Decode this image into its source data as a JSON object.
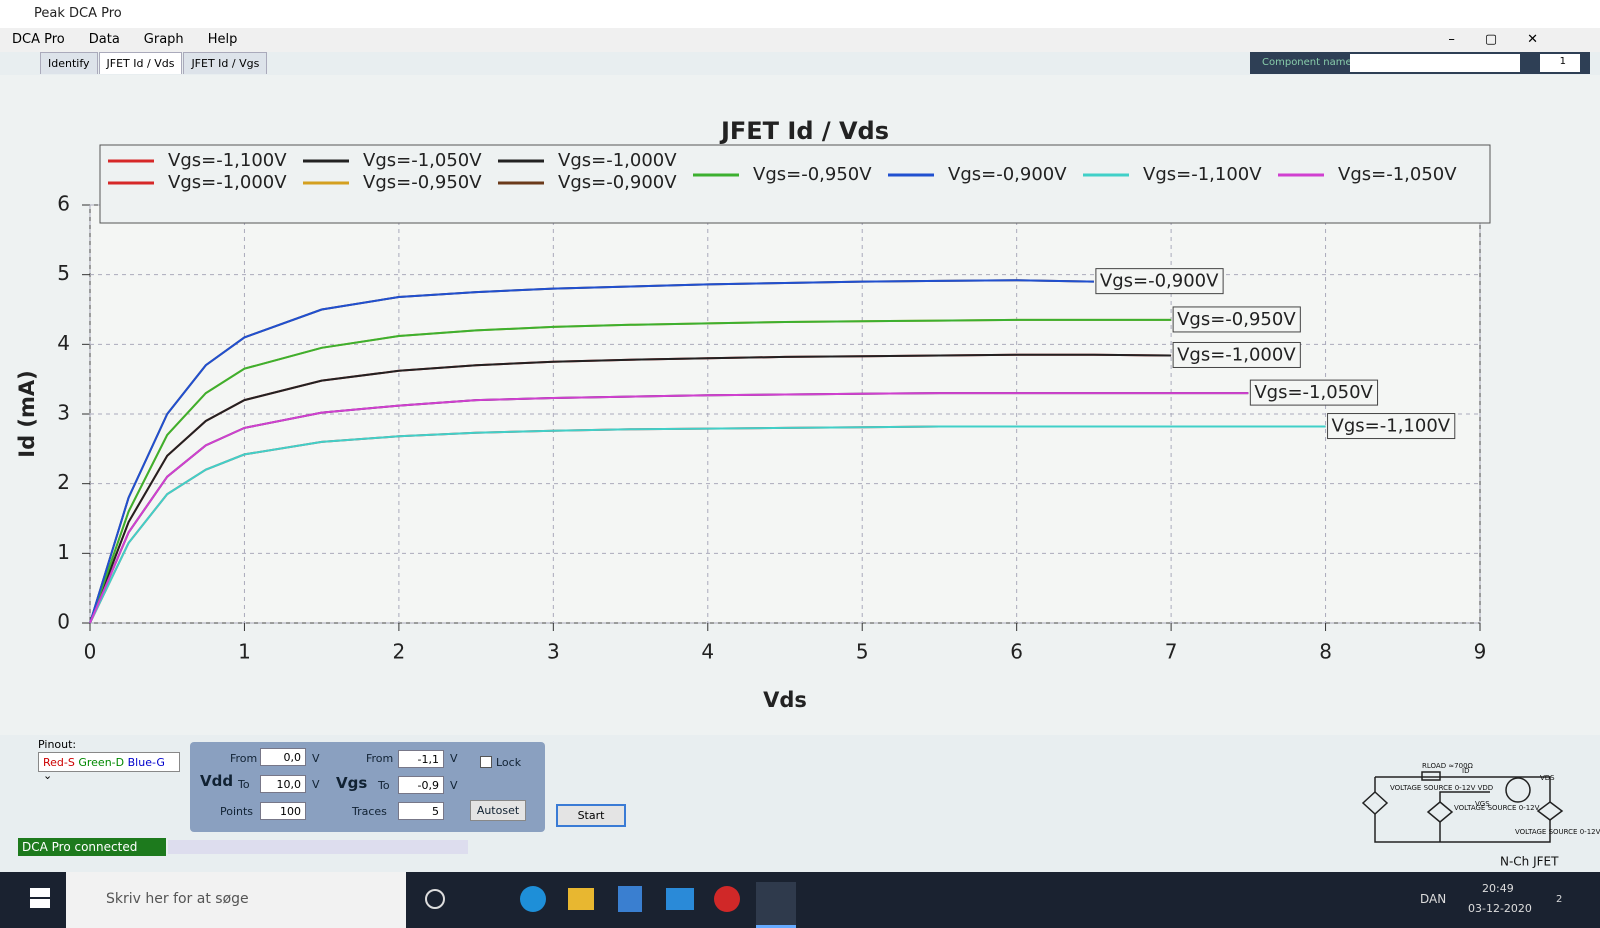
{
  "window": {
    "title": "Peak DCA Pro"
  },
  "menu": [
    "DCA Pro",
    "Data",
    "Graph",
    "Help"
  ],
  "tabs": [
    "Identify",
    "JFET Id / Vds",
    "JFET Id / Vgs"
  ],
  "component": {
    "label": "Component name",
    "count": 1
  },
  "chart_data": {
    "type": "line",
    "title": "JFET Id / Vds",
    "xlabel": "Vds",
    "ylabel": "Id (mA)",
    "x": [
      0,
      0.25,
      0.5,
      0.75,
      1,
      1.5,
      2,
      2.5,
      3,
      3.5,
      4,
      4.5,
      5,
      5.5,
      6,
      6.5,
      7,
      7.5,
      8
    ],
    "series": [
      {
        "name": "Vgs=-1,100V",
        "color": "#d62828",
        "values": [
          0,
          1.15,
          1.85,
          2.2,
          2.42,
          2.6,
          2.68,
          2.73,
          2.76,
          2.78,
          2.79,
          2.8,
          2.81,
          2.82,
          2.82,
          2.82,
          2.82,
          2.82,
          2.82
        ]
      },
      {
        "name": "Vgs=-1,000V",
        "color": "#d62828",
        "values": [
          0,
          1.45,
          2.4,
          2.9,
          3.2,
          3.48,
          3.62,
          3.7,
          3.75,
          3.78,
          3.8,
          3.82,
          3.83,
          3.84,
          3.85,
          3.85,
          3.84,
          null,
          null
        ]
      },
      {
        "name": "Vgs=-1,050V",
        "color": "#222222",
        "values": [
          0,
          1.3,
          2.1,
          2.55,
          2.8,
          3.02,
          3.12,
          3.2,
          3.23,
          3.25,
          3.27,
          3.28,
          3.29,
          3.3,
          3.3,
          3.3,
          3.3,
          3.3,
          null
        ]
      },
      {
        "name": "Vgs=-0,950V",
        "color": "#d4a020",
        "values": [
          0,
          1.6,
          2.7,
          3.3,
          3.65,
          3.95,
          4.12,
          4.2,
          4.25,
          4.28,
          4.3,
          4.32,
          4.33,
          4.34,
          4.35,
          4.35,
          4.35,
          null,
          null
        ]
      },
      {
        "name": "Vgs=-1,000V",
        "color": "#222222",
        "values": [
          0,
          1.45,
          2.4,
          2.9,
          3.2,
          3.48,
          3.62,
          3.7,
          3.75,
          3.78,
          3.8,
          3.82,
          3.83,
          3.84,
          3.85,
          3.85,
          3.84,
          null,
          null
        ]
      },
      {
        "name": "Vgs=-0,900V",
        "color": "#6b3a1a",
        "values": [
          0,
          1.8,
          3.0,
          3.7,
          4.1,
          4.5,
          4.68,
          4.75,
          4.8,
          4.83,
          4.86,
          4.88,
          4.9,
          4.91,
          4.92,
          4.9,
          null,
          null,
          null
        ]
      },
      {
        "name": "Vgs=-0,950V",
        "color": "#3cb030",
        "values": [
          0,
          1.6,
          2.7,
          3.3,
          3.65,
          3.95,
          4.12,
          4.2,
          4.25,
          4.28,
          4.3,
          4.32,
          4.33,
          4.34,
          4.35,
          4.35,
          4.35,
          null,
          null
        ]
      },
      {
        "name": "Vgs=-0,900V",
        "color": "#2050d0",
        "values": [
          0,
          1.8,
          3.0,
          3.7,
          4.1,
          4.5,
          4.68,
          4.75,
          4.8,
          4.83,
          4.86,
          4.88,
          4.9,
          4.91,
          4.92,
          4.9,
          null,
          null,
          null
        ]
      },
      {
        "name": "Vgs=-1,100V",
        "color": "#40d0c8",
        "values": [
          0,
          1.15,
          1.85,
          2.2,
          2.42,
          2.6,
          2.68,
          2.73,
          2.76,
          2.78,
          2.79,
          2.8,
          2.81,
          2.82,
          2.82,
          2.82,
          2.82,
          2.82,
          2.82
        ]
      },
      {
        "name": "Vgs=-1,050V",
        "color": "#d040d0",
        "values": [
          0,
          1.3,
          2.1,
          2.55,
          2.8,
          3.02,
          3.12,
          3.2,
          3.23,
          3.25,
          3.27,
          3.28,
          3.29,
          3.3,
          3.3,
          3.3,
          3.3,
          3.3,
          null
        ]
      }
    ],
    "xlim": [
      0,
      9
    ],
    "ylim": [
      0,
      6
    ],
    "xticks": [
      0,
      1,
      2,
      3,
      4,
      5,
      6,
      7,
      8,
      9
    ],
    "yticks": [
      0,
      1,
      2,
      3,
      4,
      5,
      6
    ],
    "grid": true,
    "legend": "top",
    "annotations": [
      "Vgs=-0,900V",
      "Vgs=-0,950V",
      "Vgs=-1,000V",
      "Vgs=-1,050V",
      "Vgs=-1,100V"
    ]
  },
  "controls": {
    "pinout_label": "Pinout:",
    "pinout": [
      "Red-S",
      "Green-D",
      "Blue-G"
    ],
    "vdd": {
      "label": "Vdd",
      "from_label": "From",
      "from": "0,0",
      "to_label": "To",
      "to": "10,0",
      "unit": "V",
      "points_label": "Points",
      "points": 100
    },
    "vgs": {
      "label": "Vgs",
      "from_label": "From",
      "from": "-1,1",
      "to_label": "To",
      "to": "-0,9",
      "unit": "V",
      "traces_label": "Traces",
      "traces": 5
    },
    "lock": "Lock",
    "autoset": "Autoset",
    "start": "Start"
  },
  "status": "DCA Pro connected",
  "circuit": {
    "caption": "N-Ch JFET",
    "load": "RLOAD ≈700Ω",
    "id": "ID",
    "vds": "VDS",
    "vgs": "VGS",
    "source_vdd": "VOLTAGE SOURCE 0-12V VDD",
    "source_vgs": "VOLTAGE SOURCE 0-12V",
    "source_vds": "VOLTAGE SOURCE 0-12V"
  },
  "taskbar": {
    "search": "Skriv her for at søge",
    "language": "DAN",
    "time": "20:49",
    "date": "03-12-2020",
    "notifications": 2
  }
}
